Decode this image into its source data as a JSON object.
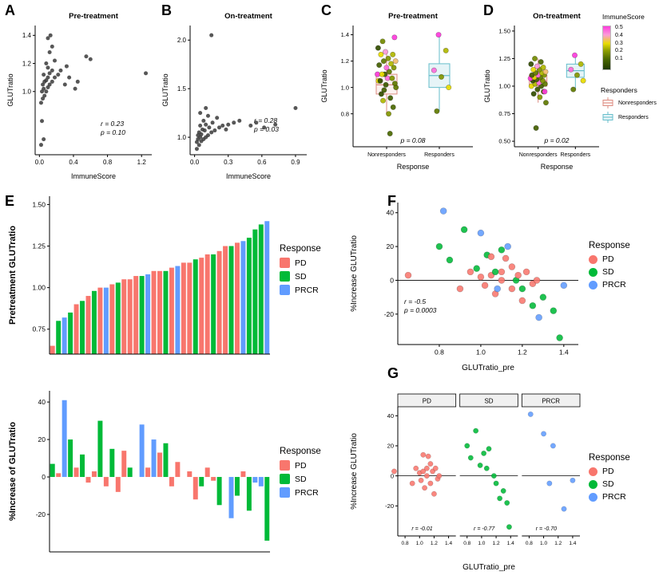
{
  "panel_labels": {
    "a": "A",
    "b": "B",
    "c": "C",
    "d": "D",
    "e": "E",
    "f": "F",
    "g": "G"
  },
  "colors": {
    "PD": "#F8766D",
    "SD": "#00BA38",
    "PRCR": "#619CFF",
    "point": "#3A3A3A",
    "nonresponders_stroke": "#DD8C82",
    "nonresponders_fill": "#FCF1EF",
    "responders_stroke": "#66BECB",
    "responders_fill": "#E6F4F7",
    "axis": "#000000"
  },
  "immune_gradient": {
    "stops": [
      [
        0,
        "#203A00"
      ],
      [
        0.12,
        "#4A6800"
      ],
      [
        0.22,
        "#8FA000"
      ],
      [
        0.3,
        "#E8DC00"
      ],
      [
        0.4,
        "#FB9BD8"
      ],
      [
        0.5,
        "#FF3BDC"
      ]
    ]
  },
  "legends": {
    "immunescore": {
      "title": "ImmuneScore",
      "ticks": [
        "0.5",
        "0.4",
        "0.3",
        "0.2",
        "0.1"
      ]
    },
    "responders": {
      "title": "Responders",
      "items": [
        "Nonresponders",
        "Responders"
      ]
    },
    "response_e1": {
      "title": "Response",
      "items": [
        "PD",
        "SD",
        "PRCR"
      ]
    },
    "response_e2": {
      "title": "Response",
      "items": [
        "PD",
        "SD",
        "PRCR"
      ]
    },
    "response_f": {
      "title": "Response",
      "items": [
        "PD",
        "SD",
        "PRCR"
      ]
    },
    "response_g": {
      "title": "Response",
      "items": [
        "PD",
        "SD",
        "PRCR"
      ]
    }
  },
  "chart_data": {
    "A": {
      "type": "scatter",
      "title": "Pre-treatment",
      "xlabel": "ImmuneScore",
      "ylabel": "GLUTratio",
      "xlim": [
        -0.05,
        1.32
      ],
      "ylim": [
        0.55,
        1.47
      ],
      "xticks": [
        0,
        0.4,
        0.8,
        1.2
      ],
      "xtick_labels": [
        "0.0",
        "0.4",
        "0.8",
        "1.2"
      ],
      "yticks": [
        1.0,
        1.2,
        1.4
      ],
      "ytick_labels": [
        "1.0",
        "1.2",
        "1.4"
      ],
      "annotation": [
        "r = 0.23",
        "p = 0.10"
      ],
      "points": [
        [
          0.02,
          0.62
        ],
        [
          0.05,
          0.66
        ],
        [
          0.03,
          0.79
        ],
        [
          0.02,
          0.92
        ],
        [
          0.04,
          0.95
        ],
        [
          0.06,
          0.97
        ],
        [
          0.03,
          1.0
        ],
        [
          0.08,
          1.0
        ],
        [
          0.05,
          1.02
        ],
        [
          0.1,
          1.03
        ],
        [
          0.04,
          1.05
        ],
        [
          0.12,
          1.05
        ],
        [
          0.06,
          1.07
        ],
        [
          0.15,
          1.07
        ],
        [
          0.08,
          1.08
        ],
        [
          0.1,
          1.1
        ],
        [
          0.18,
          1.1
        ],
        [
          0.05,
          1.12
        ],
        [
          0.22,
          1.12
        ],
        [
          0.12,
          1.13
        ],
        [
          0.3,
          1.05
        ],
        [
          0.35,
          1.1
        ],
        [
          0.42,
          1.02
        ],
        [
          0.45,
          1.07
        ],
        [
          0.15,
          1.15
        ],
        [
          0.25,
          1.15
        ],
        [
          0.1,
          1.17
        ],
        [
          0.32,
          1.18
        ],
        [
          0.08,
          1.2
        ],
        [
          0.18,
          1.22
        ],
        [
          0.55,
          1.25
        ],
        [
          0.6,
          1.23
        ],
        [
          0.12,
          1.28
        ],
        [
          0.15,
          1.32
        ],
        [
          0.1,
          1.38
        ],
        [
          0.13,
          1.4
        ],
        [
          1.25,
          1.13
        ]
      ]
    },
    "B": {
      "type": "scatter",
      "title": "On-treatment",
      "xlabel": "ImmuneScore",
      "ylabel": "GLUTratio",
      "xlim": [
        -0.04,
        1.0
      ],
      "ylim": [
        0.82,
        2.15
      ],
      "xticks": [
        0,
        0.3,
        0.6,
        0.9
      ],
      "xtick_labels": [
        "0.0",
        "0.3",
        "0.6",
        "0.9"
      ],
      "yticks": [
        1.0,
        1.5,
        2.0
      ],
      "ytick_labels": [
        "1.0",
        "1.5",
        "2.0"
      ],
      "annotation": [
        "r = 0.28",
        "p = 0.03"
      ],
      "points": [
        [
          0.02,
          0.88
        ],
        [
          0.04,
          0.92
        ],
        [
          0.02,
          0.95
        ],
        [
          0.06,
          0.96
        ],
        [
          0.03,
          0.98
        ],
        [
          0.08,
          0.98
        ],
        [
          0.05,
          1.0
        ],
        [
          0.1,
          1.0
        ],
        [
          0.03,
          1.02
        ],
        [
          0.12,
          1.02
        ],
        [
          0.06,
          1.03
        ],
        [
          0.15,
          1.05
        ],
        [
          0.04,
          1.05
        ],
        [
          0.09,
          1.07
        ],
        [
          0.18,
          1.07
        ],
        [
          0.07,
          1.08
        ],
        [
          0.13,
          1.1
        ],
        [
          0.22,
          1.1
        ],
        [
          0.05,
          1.12
        ],
        [
          0.25,
          1.12
        ],
        [
          0.1,
          1.13
        ],
        [
          0.3,
          1.13
        ],
        [
          0.16,
          1.15
        ],
        [
          0.35,
          1.15
        ],
        [
          0.08,
          1.17
        ],
        [
          0.4,
          1.17
        ],
        [
          0.2,
          1.2
        ],
        [
          0.12,
          1.22
        ],
        [
          0.05,
          1.25
        ],
        [
          0.1,
          1.3
        ],
        [
          0.5,
          1.12
        ],
        [
          0.55,
          1.15
        ],
        [
          0.62,
          1.1
        ],
        [
          0.72,
          1.13
        ],
        [
          0.9,
          1.3
        ],
        [
          0.15,
          2.05
        ],
        [
          0.28,
          1.08
        ]
      ]
    },
    "C": {
      "type": "box-jitter",
      "title": "Pre-treatment",
      "xlabel": "Response",
      "ylabel": "GLUTratio",
      "ylim": [
        0.55,
        1.47
      ],
      "yticks": [
        0.8,
        1.0,
        1.2,
        1.4
      ],
      "ytick_labels": [
        "0.8",
        "1.0",
        "1.2",
        "1.4"
      ],
      "categories": [
        "Nonresponders",
        "Responders"
      ],
      "p_label": "p = 0.08",
      "boxes": [
        [
          0.8,
          0.95,
          1.02,
          1.1,
          1.27
        ],
        [
          0.82,
          1.0,
          1.09,
          1.18,
          1.4
        ]
      ],
      "points_nonresponders": [
        [
          0.98,
          0.1
        ],
        [
          1.0,
          0.15
        ],
        [
          0.8,
          0.2
        ],
        [
          0.95,
          0.05
        ],
        [
          0.85,
          0.12
        ],
        [
          1.02,
          0.08
        ],
        [
          1.05,
          0.3
        ],
        [
          0.92,
          0.1
        ],
        [
          0.9,
          0.25
        ],
        [
          1.03,
          0.15
        ],
        [
          1.07,
          0.45
        ],
        [
          1.05,
          0.05
        ],
        [
          1.07,
          0.2
        ],
        [
          1.1,
          0.1
        ],
        [
          1.1,
          0.5
        ],
        [
          1.12,
          0.15
        ],
        [
          1.1,
          0.3
        ],
        [
          1.15,
          0.2
        ],
        [
          1.15,
          0.45
        ],
        [
          1.17,
          0.1
        ],
        [
          1.18,
          0.25
        ],
        [
          1.2,
          0.15
        ],
        [
          1.2,
          0.35
        ],
        [
          1.22,
          0.2
        ],
        [
          1.25,
          0.3
        ],
        [
          1.25,
          0.25
        ],
        [
          1.27,
          0.4
        ],
        [
          1.3,
          0.05
        ],
        [
          0.65,
          0.12
        ],
        [
          1.35,
          0.18
        ],
        [
          1.38,
          0.5
        ]
      ],
      "points_responders": [
        [
          0.82,
          0.15
        ],
        [
          1.0,
          0.3
        ],
        [
          1.08,
          0.2
        ],
        [
          1.13,
          0.45
        ],
        [
          1.28,
          0.25
        ],
        [
          1.4,
          0.5
        ]
      ]
    },
    "D": {
      "type": "box-jitter",
      "title": "On-treatment",
      "xlabel": "Response",
      "ylabel": "GLUTratio",
      "ylim": [
        0.45,
        1.55
      ],
      "yticks": [
        0.5,
        0.75,
        1.0,
        1.25,
        1.5
      ],
      "ytick_labels": [
        "0.50",
        "0.75",
        "1.00",
        "1.25",
        "1.50"
      ],
      "categories": [
        "Nonresponders",
        "Responders"
      ],
      "p_label": "p = 0.02",
      "boxes": [
        [
          0.85,
          1.0,
          1.05,
          1.1,
          1.25
        ],
        [
          0.97,
          1.08,
          1.14,
          1.2,
          1.28
        ]
      ],
      "points_nonresponders": [
        [
          0.62,
          0.1
        ],
        [
          0.85,
          0.15
        ],
        [
          0.9,
          0.2
        ],
        [
          0.93,
          0.05
        ],
        [
          0.95,
          0.12
        ],
        [
          0.97,
          0.08
        ],
        [
          1.0,
          0.3
        ],
        [
          1.0,
          0.1
        ],
        [
          1.02,
          0.25
        ],
        [
          1.02,
          0.15
        ],
        [
          1.03,
          0.45
        ],
        [
          1.05,
          0.05
        ],
        [
          1.05,
          0.2
        ],
        [
          1.06,
          0.1
        ],
        [
          1.07,
          0.5
        ],
        [
          1.08,
          0.15
        ],
        [
          1.08,
          0.3
        ],
        [
          1.1,
          0.2
        ],
        [
          1.1,
          0.45
        ],
        [
          1.1,
          0.1
        ],
        [
          1.12,
          0.25
        ],
        [
          1.12,
          0.15
        ],
        [
          1.13,
          0.35
        ],
        [
          1.15,
          0.2
        ],
        [
          1.15,
          0.3
        ],
        [
          1.17,
          0.25
        ],
        [
          1.18,
          0.4
        ],
        [
          1.2,
          0.05
        ],
        [
          1.22,
          0.12
        ],
        [
          1.25,
          0.18
        ],
        [
          0.95,
          0.5
        ]
      ],
      "points_responders": [
        [
          0.97,
          0.15
        ],
        [
          1.05,
          0.3
        ],
        [
          1.1,
          0.2
        ],
        [
          1.15,
          0.45
        ],
        [
          1.2,
          0.25
        ],
        [
          1.28,
          0.5
        ]
      ]
    },
    "E1": {
      "type": "bar",
      "ylabel": "Pretreatment GLUTratio",
      "sort": "ascending",
      "ylim": [
        0.6,
        1.55
      ],
      "yticks": [
        0.75,
        1.0,
        1.25,
        1.5
      ],
      "ytick_labels": [
        "0.75",
        "1.00",
        "1.25",
        "1.50"
      ]
    },
    "E2": {
      "type": "bar",
      "ylabel": "%Increase of GLUTratio",
      "base": "zero",
      "ylim": [
        -40,
        46
      ],
      "yticks": [
        -20,
        0,
        20,
        40
      ],
      "ytick_labels": [
        "-20",
        "0",
        "20",
        "40"
      ]
    },
    "F": {
      "type": "scatter",
      "xlabel": "GLUTratio_pre",
      "ylabel": "%Increase GLUTratio",
      "hline": 0,
      "xlim": [
        0.6,
        1.47
      ],
      "xticks": [
        0.8,
        1.0,
        1.2,
        1.4
      ],
      "xtick_labels": [
        "0.8",
        "1.0",
        "1.2",
        "1.4"
      ],
      "ylim": [
        -38,
        46
      ],
      "yticks": [
        -20,
        0,
        20,
        40
      ],
      "ytick_labels": [
        "-20",
        "0",
        "20",
        "40"
      ],
      "annotation": [
        "r = -0.5",
        "p = 0.0003"
      ]
    },
    "G": {
      "type": "facet-scatter",
      "xlabel": "GLUTratio_pre",
      "ylabel": "%Increase GLUTratio",
      "hline": 0,
      "facets": [
        "PD",
        "SD",
        "PRCR"
      ],
      "r_labels": [
        "r = -0.01",
        "r = -0.77",
        "r = -0.70"
      ],
      "xlim": [
        0.7,
        1.5
      ],
      "xticks": [
        0.8,
        1.0,
        1.2,
        1.4
      ],
      "xtick_labels": [
        "0.8",
        "1.0",
        "1.2",
        "1.4"
      ],
      "ylim": [
        -40,
        46
      ],
      "yticks": [
        -20,
        0,
        20,
        40
      ],
      "ytick_labels": [
        "-20",
        "0",
        "20",
        "40"
      ]
    },
    "subjects": {
      "columns": [
        "glut_ratio_pre",
        "pct_increase_glut_ratio",
        "response"
      ],
      "rows": [
        [
          0.98,
          7,
          "SD"
        ],
        [
          1.0,
          2,
          "PD"
        ],
        [
          0.82,
          41,
          "PRCR"
        ],
        [
          0.8,
          20,
          "SD"
        ],
        [
          0.95,
          5,
          "PD"
        ],
        [
          0.85,
          12,
          "SD"
        ],
        [
          1.02,
          -3,
          "PD"
        ],
        [
          1.05,
          3,
          "PD"
        ],
        [
          0.92,
          30,
          "SD"
        ],
        [
          0.9,
          -5,
          "PD"
        ],
        [
          1.03,
          15,
          "SD"
        ],
        [
          1.07,
          -8,
          "PD"
        ],
        [
          1.05,
          14,
          "PD"
        ],
        [
          1.07,
          5,
          "SD"
        ],
        [
          1.1,
          0,
          "PD"
        ],
        [
          1.0,
          28,
          "PRCR"
        ],
        [
          1.1,
          5,
          "PD"
        ],
        [
          1.13,
          20,
          "PRCR"
        ],
        [
          1.12,
          13,
          "PD"
        ],
        [
          1.1,
          18,
          "SD"
        ],
        [
          1.15,
          -5,
          "PD"
        ],
        [
          1.15,
          8,
          "PD"
        ],
        [
          1.17,
          0,
          "SD"
        ],
        [
          1.18,
          3,
          "PD"
        ],
        [
          1.2,
          -12,
          "PD"
        ],
        [
          1.2,
          -5,
          "SD"
        ],
        [
          1.22,
          5,
          "PD"
        ],
        [
          1.25,
          -2,
          "PD"
        ],
        [
          1.25,
          -15,
          "SD"
        ],
        [
          1.27,
          0,
          "PD"
        ],
        [
          1.28,
          -22,
          "PRCR"
        ],
        [
          1.3,
          -10,
          "SD"
        ],
        [
          0.65,
          3,
          "PD"
        ],
        [
          1.35,
          -18,
          "SD"
        ],
        [
          1.4,
          -3,
          "PRCR"
        ],
        [
          1.08,
          -5,
          "PRCR"
        ],
        [
          1.38,
          -34,
          "SD"
        ]
      ]
    }
  }
}
